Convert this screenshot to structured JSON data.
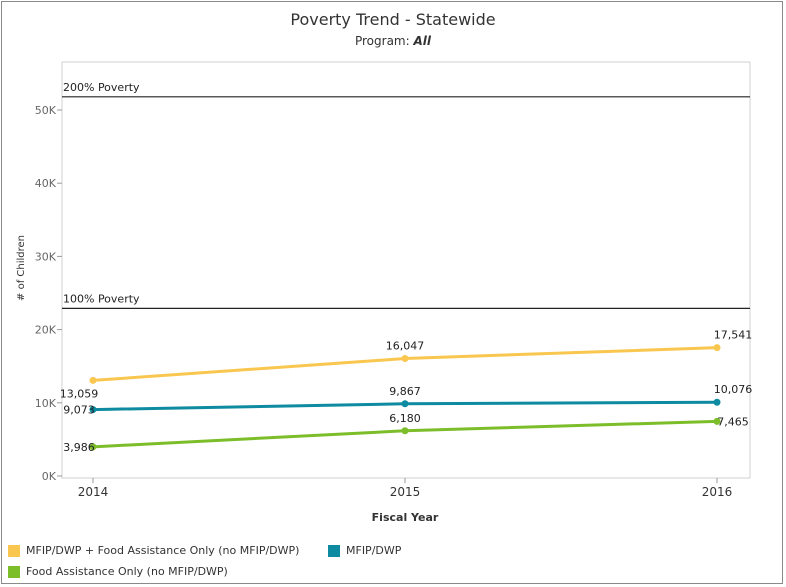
{
  "header": {
    "title": "Poverty Trend - Statewide",
    "subtitle_prefix": "Program:",
    "subtitle_value": "All"
  },
  "chart_data": {
    "type": "line",
    "xlabel": "Fiscal Year",
    "ylabel": "# of Children",
    "x": [
      "2014",
      "2015",
      "2016"
    ],
    "ylim": [
      0,
      55000
    ],
    "yticks": [
      0,
      10000,
      20000,
      30000,
      40000,
      50000
    ],
    "ytick_labels": [
      "0K",
      "10K",
      "20K",
      "30K",
      "40K",
      "50K"
    ],
    "grid": false,
    "legend_position": "bottom-left",
    "reference_lines": [
      {
        "label": "200% Poverty",
        "value": 51800
      },
      {
        "label": "100% Poverty",
        "value": 22900
      }
    ],
    "series": [
      {
        "name": "MFIP/DWP + Food Assistance Only (no MFIP/DWP)",
        "color": "#f9c74f",
        "values": [
          13059,
          16047,
          17541
        ],
        "labels": [
          "13,059",
          "16,047",
          "17,541"
        ]
      },
      {
        "name": "MFIP/DWP",
        "color": "#0e8ba0",
        "values": [
          9073,
          9867,
          10076
        ],
        "labels": [
          "9,073",
          "9,867",
          "10,076"
        ]
      },
      {
        "name": "Food Assistance Only (no MFIP/DWP)",
        "color": "#7cbd2a",
        "values": [
          3986,
          6180,
          7465
        ],
        "labels": [
          "3,986",
          "6,180",
          "7,465"
        ]
      }
    ]
  }
}
